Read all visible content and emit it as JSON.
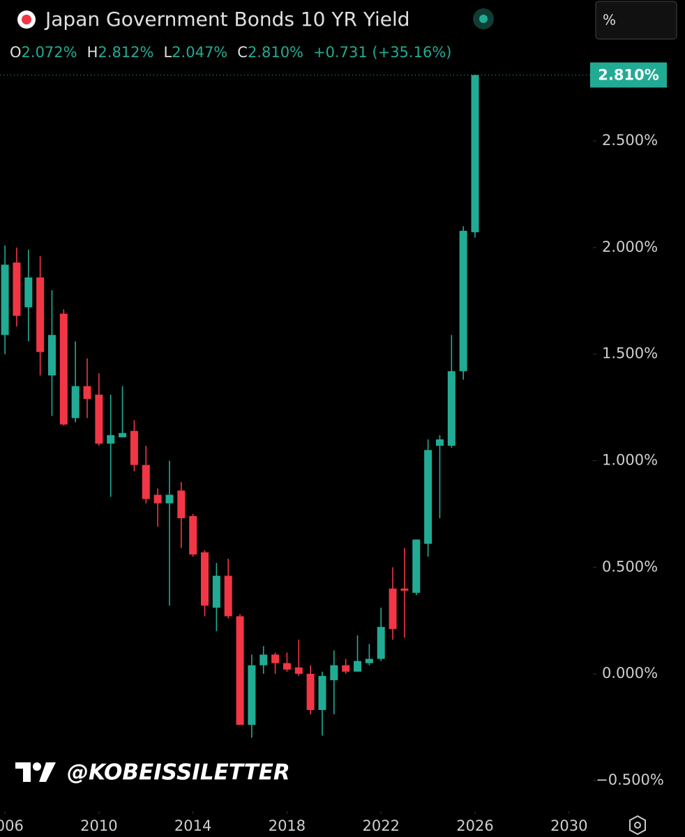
{
  "header": {
    "title": "Japan Government Bonds 10 YR Yield",
    "legend": [
      {
        "key": "O",
        "value": "2.072%"
      },
      {
        "key": "H",
        "value": "2.812%"
      },
      {
        "key": "L",
        "value": "2.047%"
      },
      {
        "key": "C",
        "value": "2.810%"
      }
    ],
    "change": "+0.731 (+35.16%)",
    "unit_button": "%"
  },
  "watermark": "@KOBEISSILETTER",
  "chart_data": {
    "type": "candlestick",
    "up_color": "#22ab94",
    "down_color": "#f23645",
    "x": [
      2006,
      2006.5,
      2007,
      2007.5,
      2008,
      2008.5,
      2009,
      2009.5,
      2010,
      2010.5,
      2011,
      2011.5,
      2012,
      2012.5,
      2013,
      2013.5,
      2014,
      2014.5,
      2015,
      2015.5,
      2016,
      2016.5,
      2017,
      2017.5,
      2018,
      2018.5,
      2019,
      2019.5,
      2020,
      2020.5,
      2021,
      2021.5,
      2022,
      2022.5,
      2023,
      2023.5,
      2024,
      2024.5,
      2025,
      2025.5,
      2026
    ],
    "open": [
      1.59,
      1.93,
      1.72,
      1.86,
      1.4,
      1.69,
      1.2,
      1.35,
      1.31,
      1.08,
      1.11,
      1.14,
      0.98,
      0.84,
      0.8,
      0.86,
      0.74,
      0.57,
      0.31,
      0.46,
      0.27,
      -0.24,
      0.04,
      0.09,
      0.05,
      0.03,
      0.0,
      -0.17,
      -0.03,
      0.04,
      0.01,
      0.05,
      0.07,
      0.4,
      0.4,
      0.38,
      0.61,
      1.07,
      1.07,
      1.42,
      2.072
    ],
    "high": [
      2.01,
      2.0,
      1.99,
      1.96,
      1.8,
      1.71,
      1.56,
      1.48,
      1.41,
      1.31,
      1.35,
      1.19,
      1.07,
      0.87,
      1.0,
      0.9,
      0.75,
      0.58,
      0.52,
      0.54,
      0.28,
      0.09,
      0.13,
      0.1,
      0.1,
      0.16,
      0.04,
      0.01,
      0.11,
      0.07,
      0.18,
      0.14,
      0.31,
      0.5,
      0.59,
      0.63,
      1.1,
      1.12,
      1.59,
      2.1,
      2.812
    ],
    "low": [
      1.5,
      1.63,
      1.56,
      1.4,
      1.21,
      1.165,
      1.18,
      1.2,
      1.07,
      0.83,
      1.11,
      0.95,
      0.8,
      0.69,
      0.32,
      0.59,
      0.55,
      0.27,
      0.2,
      0.26,
      -0.24,
      -0.3,
      0.0,
      0.0,
      0.01,
      -0.01,
      -0.19,
      -0.29,
      -0.19,
      0.0,
      0.01,
      0.04,
      0.06,
      0.16,
      0.17,
      0.37,
      0.55,
      0.73,
      1.06,
      1.38,
      2.047
    ],
    "close": [
      1.92,
      1.68,
      1.86,
      1.51,
      1.59,
      1.17,
      1.35,
      1.29,
      1.08,
      1.12,
      1.13,
      0.98,
      0.82,
      0.8,
      0.84,
      0.73,
      0.56,
      0.32,
      0.46,
      0.27,
      -0.24,
      0.04,
      0.09,
      0.05,
      0.02,
      0.0,
      -0.17,
      -0.01,
      0.04,
      0.01,
      0.06,
      0.07,
      0.22,
      0.21,
      0.39,
      0.63,
      1.05,
      1.1,
      1.42,
      2.079,
      2.81
    ],
    "last_price": {
      "value": 2.81,
      "label": "2.810%"
    },
    "xlim": [
      2005.79,
      2031.0
    ],
    "ylim": [
      -0.635,
      3.162
    ],
    "xticks": [
      2006,
      2010,
      2014,
      2018,
      2022,
      2026,
      2030
    ],
    "yticks": [
      {
        "value": -0.5,
        "label": "−0.500%"
      },
      {
        "value": 0,
        "label": "0.000%"
      },
      {
        "value": 0.5,
        "label": "0.500%"
      },
      {
        "value": 1,
        "label": "1.000%"
      },
      {
        "value": 1.5,
        "label": "1.500%"
      },
      {
        "value": 2,
        "label": "2.000%"
      },
      {
        "value": 2.5,
        "label": "2.500%"
      }
    ]
  }
}
